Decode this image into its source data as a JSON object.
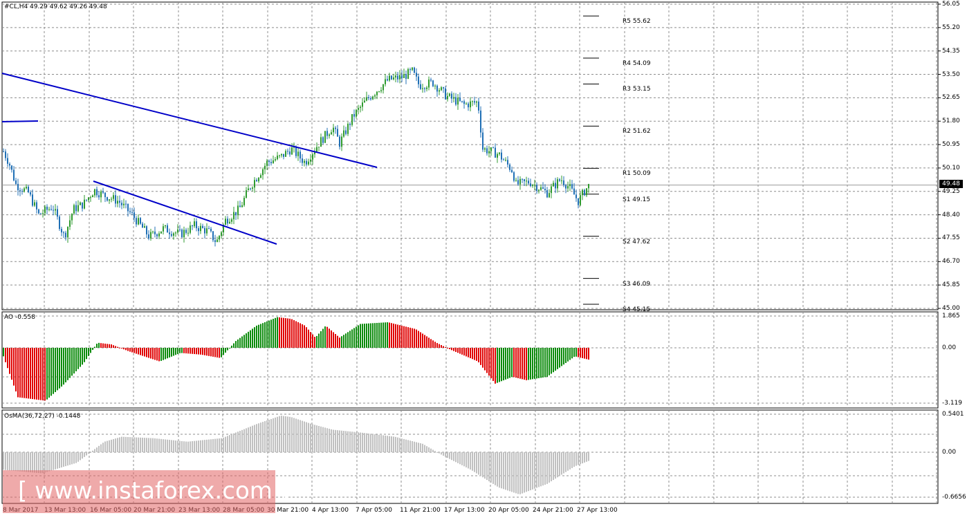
{
  "main": {
    "header": "#CL,H4  49.29 49.62 49.26 49.48",
    "current_price": "49.48",
    "price_axis": [
      "56.05",
      "55.20",
      "54.35",
      "53.50",
      "52.65",
      "51.80",
      "50.95",
      "50.10",
      "49.25",
      "48.40",
      "47.55",
      "46.70",
      "45.85",
      "45.00"
    ],
    "pivots": [
      {
        "label": "R5 55.62",
        "value": 55.62
      },
      {
        "label": "R4 54.09",
        "value": 54.09
      },
      {
        "label": "R3 53.15",
        "value": 53.15
      },
      {
        "label": "R2 51.62",
        "value": 51.62
      },
      {
        "label": "R1 50.09",
        "value": 50.09
      },
      {
        "label": "S1 49.15",
        "value": 49.15
      },
      {
        "label": "S2 47.62",
        "value": 47.62
      },
      {
        "label": "S3 46.09",
        "value": 46.09
      },
      {
        "label": "S4 45.15",
        "value": 45.15
      }
    ]
  },
  "ao": {
    "header": "AO -0.558",
    "axis": [
      "1.865",
      "0.00",
      "-3.119"
    ]
  },
  "osma": {
    "header": "OsMA(36,72,27) -0.1448",
    "axis": [
      "0.5401",
      "0.00",
      "-0.6656"
    ]
  },
  "time_axis": [
    "8 Mar 2017",
    "13 Mar 13:00",
    "16 Mar 05:00",
    "20 Mar 21:00",
    "23 Mar 13:00",
    "28 Mar 05:00",
    "30 Mar 21:00",
    "4 Apr 13:00",
    "7 Apr 05:00",
    "11 Apr 21:00",
    "17 Apr 13:00",
    "20 Apr 05:00",
    "24 Apr 21:00",
    "27 Apr 13:00"
  ],
  "watermark": "[ www.instaforex.com ]",
  "colors": {
    "bull": "#2e9a2e",
    "bear": "#1f6fb5",
    "ao_up": "#0a8a0a",
    "ao_down": "#e00000",
    "osma": "#c0c0c0",
    "trendline": "#0000c8",
    "grid": "#8c8c8c"
  }
}
